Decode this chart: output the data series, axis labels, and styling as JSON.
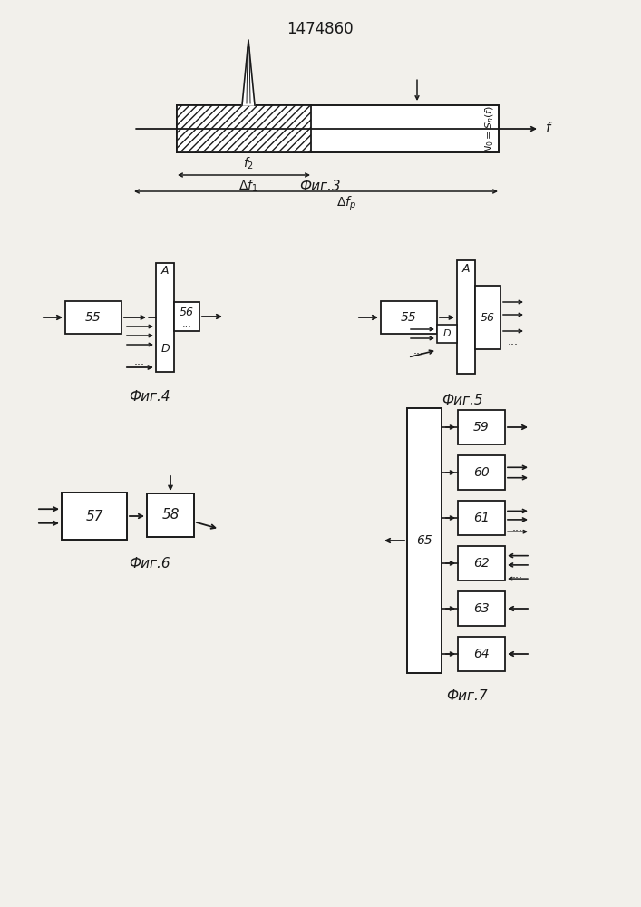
{
  "title": "1474860",
  "fig3_label": "Фиг.3",
  "fig4_label": "Фиг.4",
  "fig5_label": "Фиг.5",
  "fig6_label": "Фиг.6",
  "fig7_label": "Фиг.7",
  "bg_color": "#f2f0eb",
  "line_color": "#1a1a1a",
  "text_color": "#1a1a1a"
}
